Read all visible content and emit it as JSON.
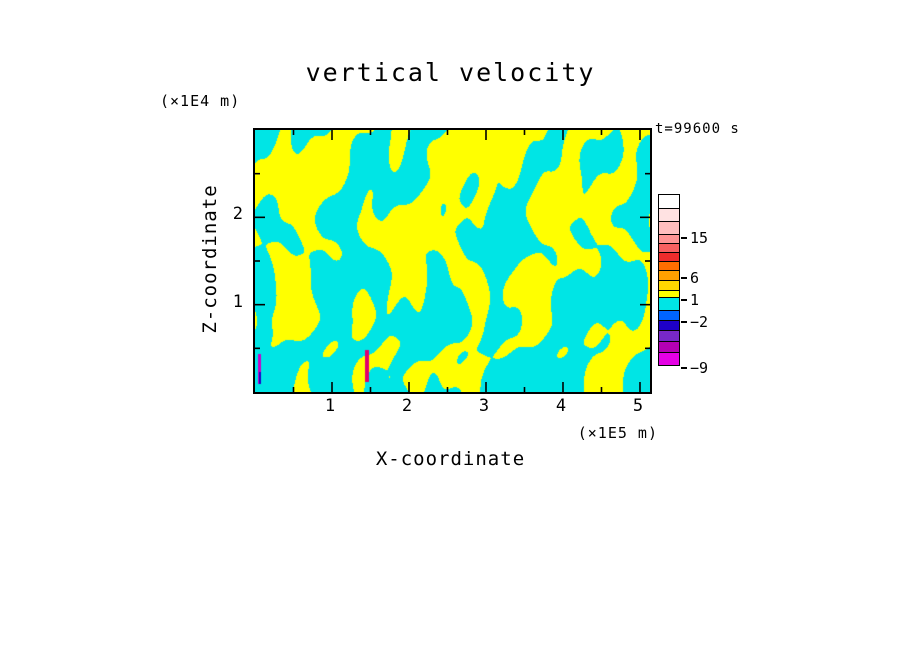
{
  "chart_data": {
    "type": "heatmap",
    "title": "vertical velocity",
    "time_label": "t=99600 s",
    "xlabel": "X-coordinate",
    "ylabel": "Z-coordinate",
    "x_unit_label": "(×1E5 m)",
    "y_unit_label": "(×1E4 m)",
    "x_max": 5.13,
    "y_max": 3.0,
    "x_ticks": [
      1,
      2,
      3,
      4,
      5
    ],
    "y_ticks": [
      1,
      2
    ],
    "minor_step": 0.5,
    "grid": false,
    "legend_position": "right-colorbar",
    "field": {
      "description": "Turbulent vertical-velocity cross-section: yellow regions are updrafts (values between 1 and 6), cyan regions are downdrafts (values between -2 and 1); small magenta/blue/red slivers near the bottom left mark extreme values.",
      "positive_color": "#FFFF00",
      "negative_color": "#00E5E5",
      "seed": 7,
      "extreme_spots": [
        {
          "x": 3,
          "y": 224,
          "w": 3,
          "h": 30,
          "color": "#C800C8"
        },
        {
          "x": 4,
          "y": 242,
          "w": 2,
          "h": 12,
          "color": "#1E00C8"
        },
        {
          "x": 110,
          "y": 220,
          "w": 4,
          "h": 32,
          "color": "#E0006E"
        }
      ]
    },
    "colorbar": {
      "segments": [
        {
          "color": "#FFFFFF",
          "h": 15
        },
        {
          "color": "#FFE2E2",
          "h": 14
        },
        {
          "color": "#FFBEBE",
          "h": 14,
          "label": "15"
        },
        {
          "color": "#FF9494",
          "h": 10
        },
        {
          "color": "#F86060",
          "h": 10
        },
        {
          "color": "#EE2C2C",
          "h": 10
        },
        {
          "color": "#FF6E00",
          "h": 10,
          "label": "6"
        },
        {
          "color": "#FFA000",
          "h": 11
        },
        {
          "color": "#FFD700",
          "h": 11,
          "label": "1"
        },
        {
          "color": "#FFFF00",
          "h": 8
        },
        {
          "color": "#00E5E5",
          "h": 14,
          "label": "−2"
        },
        {
          "color": "#0064FF",
          "h": 11
        },
        {
          "color": "#1E00C8",
          "h": 11
        },
        {
          "color": "#7828C8",
          "h": 12
        },
        {
          "color": "#B400B4",
          "h": 12,
          "label": "−9"
        },
        {
          "color": "#E400E4",
          "h": 14
        }
      ]
    }
  }
}
